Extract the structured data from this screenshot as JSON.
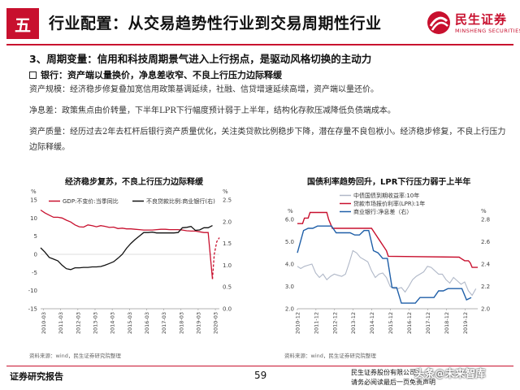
{
  "header": {
    "section_num": "五",
    "title": "行业配置：从交易趋势性行业到交易周期性行业",
    "logo_cn": "民生证券",
    "logo_en": "MINSHENG SECURITIES"
  },
  "subheading": "3、周期变量：信用和科技周期景气进入上行拐点，是驱动风格切换的主动力",
  "bullet": "银行：资产端以量换价，净息差收窄、不良上行压力边际释缓",
  "paragraphs": [
    "资产规模：经济稳步修复叠加宽信用政策基调延续，社融、信贷增速延续高增，资产端以量还价。",
    "净息差：政策焦点由价转量，下半年LPR下行幅度预计弱于上半年，结构化存款压减降低负债端成本。",
    "资产质量：经历过去2年去杠杆后银行资产质量优化，关注类贷款比例稳步下降，潜在存量不良包袱小。经济稳步修复，不良上行压力边际释缓。"
  ],
  "chart_data": [
    {
      "type": "line",
      "title": "经济稳步复苏，不良上行压力边际释缓",
      "y_unit_left": "%",
      "y_unit_right": "%",
      "ylim_left": [
        -15,
        15
      ],
      "yticks_left": [
        15,
        10,
        5,
        0,
        -5,
        -10,
        -15
      ],
      "ylim_right": [
        0,
        2.5
      ],
      "yticks_right": [
        "2.5",
        "2.0",
        "1.5",
        "1.0",
        "0.5",
        "0.0"
      ],
      "xlim": [
        2010.0,
        2020.4
      ],
      "x_tick_labels": [
        "2010-03",
        "2011-03",
        "2012-03",
        "2013-03",
        "2014-03",
        "2015-03",
        "2016-03",
        "2017-03",
        "2018-03",
        "2019-03",
        "2020-03"
      ],
      "legend": [
        "GDP:不变价:当季同比",
        "不良贷款比例:商业银行(右)"
      ],
      "colors": [
        "#c8102e",
        "#111111"
      ],
      "series": [
        {
          "name": "GDP:不变价:当季同比",
          "axis": "left",
          "style": "solid",
          "x": [
            2010.0,
            2010.25,
            2010.5,
            2010.75,
            2011.0,
            2011.25,
            2011.5,
            2011.75,
            2012.0,
            2012.25,
            2012.5,
            2012.75,
            2013.0,
            2013.25,
            2013.5,
            2013.75,
            2014.0,
            2014.25,
            2014.5,
            2014.75,
            2015.0,
            2015.25,
            2015.5,
            2015.75,
            2016.0,
            2016.25,
            2016.5,
            2016.75,
            2017.0,
            2017.25,
            2017.5,
            2017.75,
            2018.0,
            2018.25,
            2018.5,
            2018.75,
            2019.0,
            2019.25,
            2019.5,
            2019.75,
            2020.0
          ],
          "y": [
            12.2,
            11.4,
            10.8,
            10.2,
            10.2,
            10.0,
            9.4,
            8.9,
            8.1,
            7.6,
            7.5,
            8.1,
            7.9,
            7.6,
            7.9,
            7.7,
            7.4,
            7.5,
            7.1,
            7.2,
            7.0,
            7.0,
            6.9,
            6.8,
            6.7,
            6.7,
            6.7,
            6.8,
            6.9,
            6.9,
            6.8,
            6.8,
            6.8,
            6.7,
            6.5,
            6.4,
            6.4,
            6.2,
            6.0,
            6.0,
            -6.8
          ]
        },
        {
          "name": "GDP:不变价:当季同比 (预测)",
          "axis": "left",
          "style": "dashed",
          "x": [
            2020.0,
            2020.1,
            2020.25,
            2020.4
          ],
          "y": [
            -6.8,
            0.0,
            3.5,
            4.6
          ]
        },
        {
          "name": "不良贷款比例:商业银行(右)",
          "axis": "right",
          "style": "solid",
          "x": [
            2010.0,
            2010.25,
            2010.5,
            2010.75,
            2011.0,
            2011.25,
            2011.5,
            2011.75,
            2012.0,
            2012.25,
            2012.5,
            2012.75,
            2013.0,
            2013.25,
            2013.5,
            2013.75,
            2014.0,
            2014.25,
            2014.5,
            2014.75,
            2015.0,
            2015.25,
            2015.5,
            2015.75,
            2016.0,
            2016.25,
            2016.5,
            2016.75,
            2017.0,
            2017.25,
            2017.5,
            2017.75,
            2018.0,
            2018.25,
            2018.5,
            2018.75,
            2019.0,
            2019.25,
            2019.5,
            2019.75,
            2020.0
          ],
          "y": [
            1.4,
            1.3,
            1.18,
            1.14,
            1.1,
            1.0,
            0.92,
            0.9,
            0.94,
            0.94,
            0.95,
            0.95,
            0.96,
            0.96,
            0.97,
            1.0,
            1.04,
            1.08,
            1.16,
            1.25,
            1.39,
            1.5,
            1.59,
            1.67,
            1.75,
            1.75,
            1.76,
            1.74,
            1.74,
            1.74,
            1.74,
            1.74,
            1.75,
            1.86,
            1.87,
            1.89,
            1.8,
            1.81,
            1.86,
            1.86,
            1.91
          ]
        }
      ],
      "source": "资料来源：wind，民生证券研究院整理"
    },
    {
      "type": "line",
      "title": "国债利率趋势回升，LPR下行压力弱于上半年",
      "y_unit_left": "%",
      "y_unit_right": "%",
      "ylim_left": [
        2.0,
        6.0
      ],
      "yticks_left": [
        "6.0",
        "5.0",
        "4.0",
        "3.0",
        "2.0"
      ],
      "ylim_right": [
        2.0,
        2.8
      ],
      "yticks_right": [
        "2.8",
        "2.6",
        "2.4",
        "2.2",
        "2.0"
      ],
      "xlim": [
        2010.92,
        2020.6
      ],
      "x_tick_labels": [
        "2010-12",
        "2011-12",
        "2012-12",
        "2013-12",
        "2014-12",
        "2015-12",
        "2016-12",
        "2017-12",
        "2018-12",
        "2019-12"
      ],
      "legend": [
        "中债国债到期收益率:10年",
        "贷款市场报价利率(LPR):1年",
        "商业银行:净息差（右）"
      ],
      "colors": [
        "#b0b8c8",
        "#c8102e",
        "#1f5fa8"
      ],
      "series": [
        {
          "name": "中债国债到期收益率:10年",
          "axis": "left",
          "x": [
            2010.92,
            2011.1,
            2011.3,
            2011.5,
            2011.7,
            2011.9,
            2012.1,
            2012.3,
            2012.5,
            2012.7,
            2012.9,
            2013.1,
            2013.3,
            2013.5,
            2013.7,
            2013.9,
            2014.1,
            2014.3,
            2014.5,
            2014.7,
            2014.9,
            2015.1,
            2015.3,
            2015.5,
            2015.7,
            2015.9,
            2016.1,
            2016.3,
            2016.5,
            2016.7,
            2016.9,
            2017.1,
            2017.3,
            2017.5,
            2017.7,
            2017.9,
            2018.1,
            2018.3,
            2018.5,
            2018.7,
            2018.9,
            2019.1,
            2019.3,
            2019.5,
            2019.7,
            2019.9,
            2020.1,
            2020.3,
            2020.5
          ],
          "y": [
            3.9,
            3.8,
            3.9,
            3.95,
            4.0,
            3.6,
            3.4,
            3.55,
            3.3,
            3.45,
            3.55,
            3.5,
            3.45,
            3.55,
            4.05,
            4.6,
            4.5,
            4.3,
            4.2,
            4.1,
            3.7,
            3.4,
            3.55,
            3.6,
            3.4,
            3.0,
            2.9,
            2.9,
            2.95,
            2.75,
            3.0,
            3.3,
            3.45,
            3.55,
            3.65,
            3.9,
            3.85,
            3.7,
            3.55,
            3.55,
            3.3,
            3.15,
            3.4,
            3.25,
            3.1,
            3.2,
            2.8,
            2.6,
            2.9
          ]
        },
        {
          "name": "贷款市场报价利率(LPR):1年",
          "axis": "left",
          "x": [
            2010.92,
            2011.2,
            2011.3,
            2011.5,
            2011.6,
            2012.5,
            2012.6,
            2012.8,
            2014.9,
            2015.1,
            2015.3,
            2015.5,
            2015.7,
            2015.8,
            2019.6,
            2019.7,
            2019.9,
            2020.1,
            2020.2,
            2020.3,
            2020.6
          ],
          "y": [
            5.81,
            5.81,
            6.06,
            6.06,
            6.31,
            6.31,
            6.0,
            5.6,
            5.6,
            5.35,
            5.1,
            4.85,
            4.6,
            4.35,
            4.31,
            4.25,
            4.15,
            4.15,
            4.05,
            3.85,
            3.85
          ]
        },
        {
          "name": "商业银行:净息差（右）",
          "axis": "right",
          "x": [
            2010.92,
            2011.25,
            2011.5,
            2011.75,
            2012.0,
            2012.25,
            2012.5,
            2012.75,
            2013.0,
            2013.25,
            2013.5,
            2013.75,
            2014.0,
            2014.25,
            2014.5,
            2014.75,
            2015.0,
            2015.25,
            2015.5,
            2015.75,
            2016.0,
            2016.25,
            2016.5,
            2016.75,
            2017.0,
            2017.25,
            2017.5,
            2017.75,
            2018.0,
            2018.25,
            2018.5,
            2018.75,
            2019.0,
            2019.25,
            2019.5,
            2019.75,
            2020.0,
            2020.25
          ],
          "y": [
            2.5,
            2.7,
            2.72,
            2.72,
            2.74,
            2.74,
            2.74,
            2.74,
            2.68,
            2.68,
            2.68,
            2.68,
            2.66,
            2.66,
            2.7,
            2.7,
            2.52,
            2.5,
            2.45,
            2.45,
            2.19,
            2.19,
            2.05,
            2.05,
            2.05,
            2.05,
            2.1,
            2.1,
            2.1,
            2.1,
            2.16,
            2.16,
            2.18,
            2.18,
            2.18,
            2.18,
            2.08,
            2.1
          ]
        }
      ],
      "source": "资料来源：wind，民生证券研究院整理"
    }
  ],
  "footer": {
    "left": "证券研究报告",
    "page": "59",
    "right_line1": "民生证券股份有限公司",
    "right_line2": "请务必阅读最后一页免责声明",
    "watermark": "头条@未来智库"
  }
}
